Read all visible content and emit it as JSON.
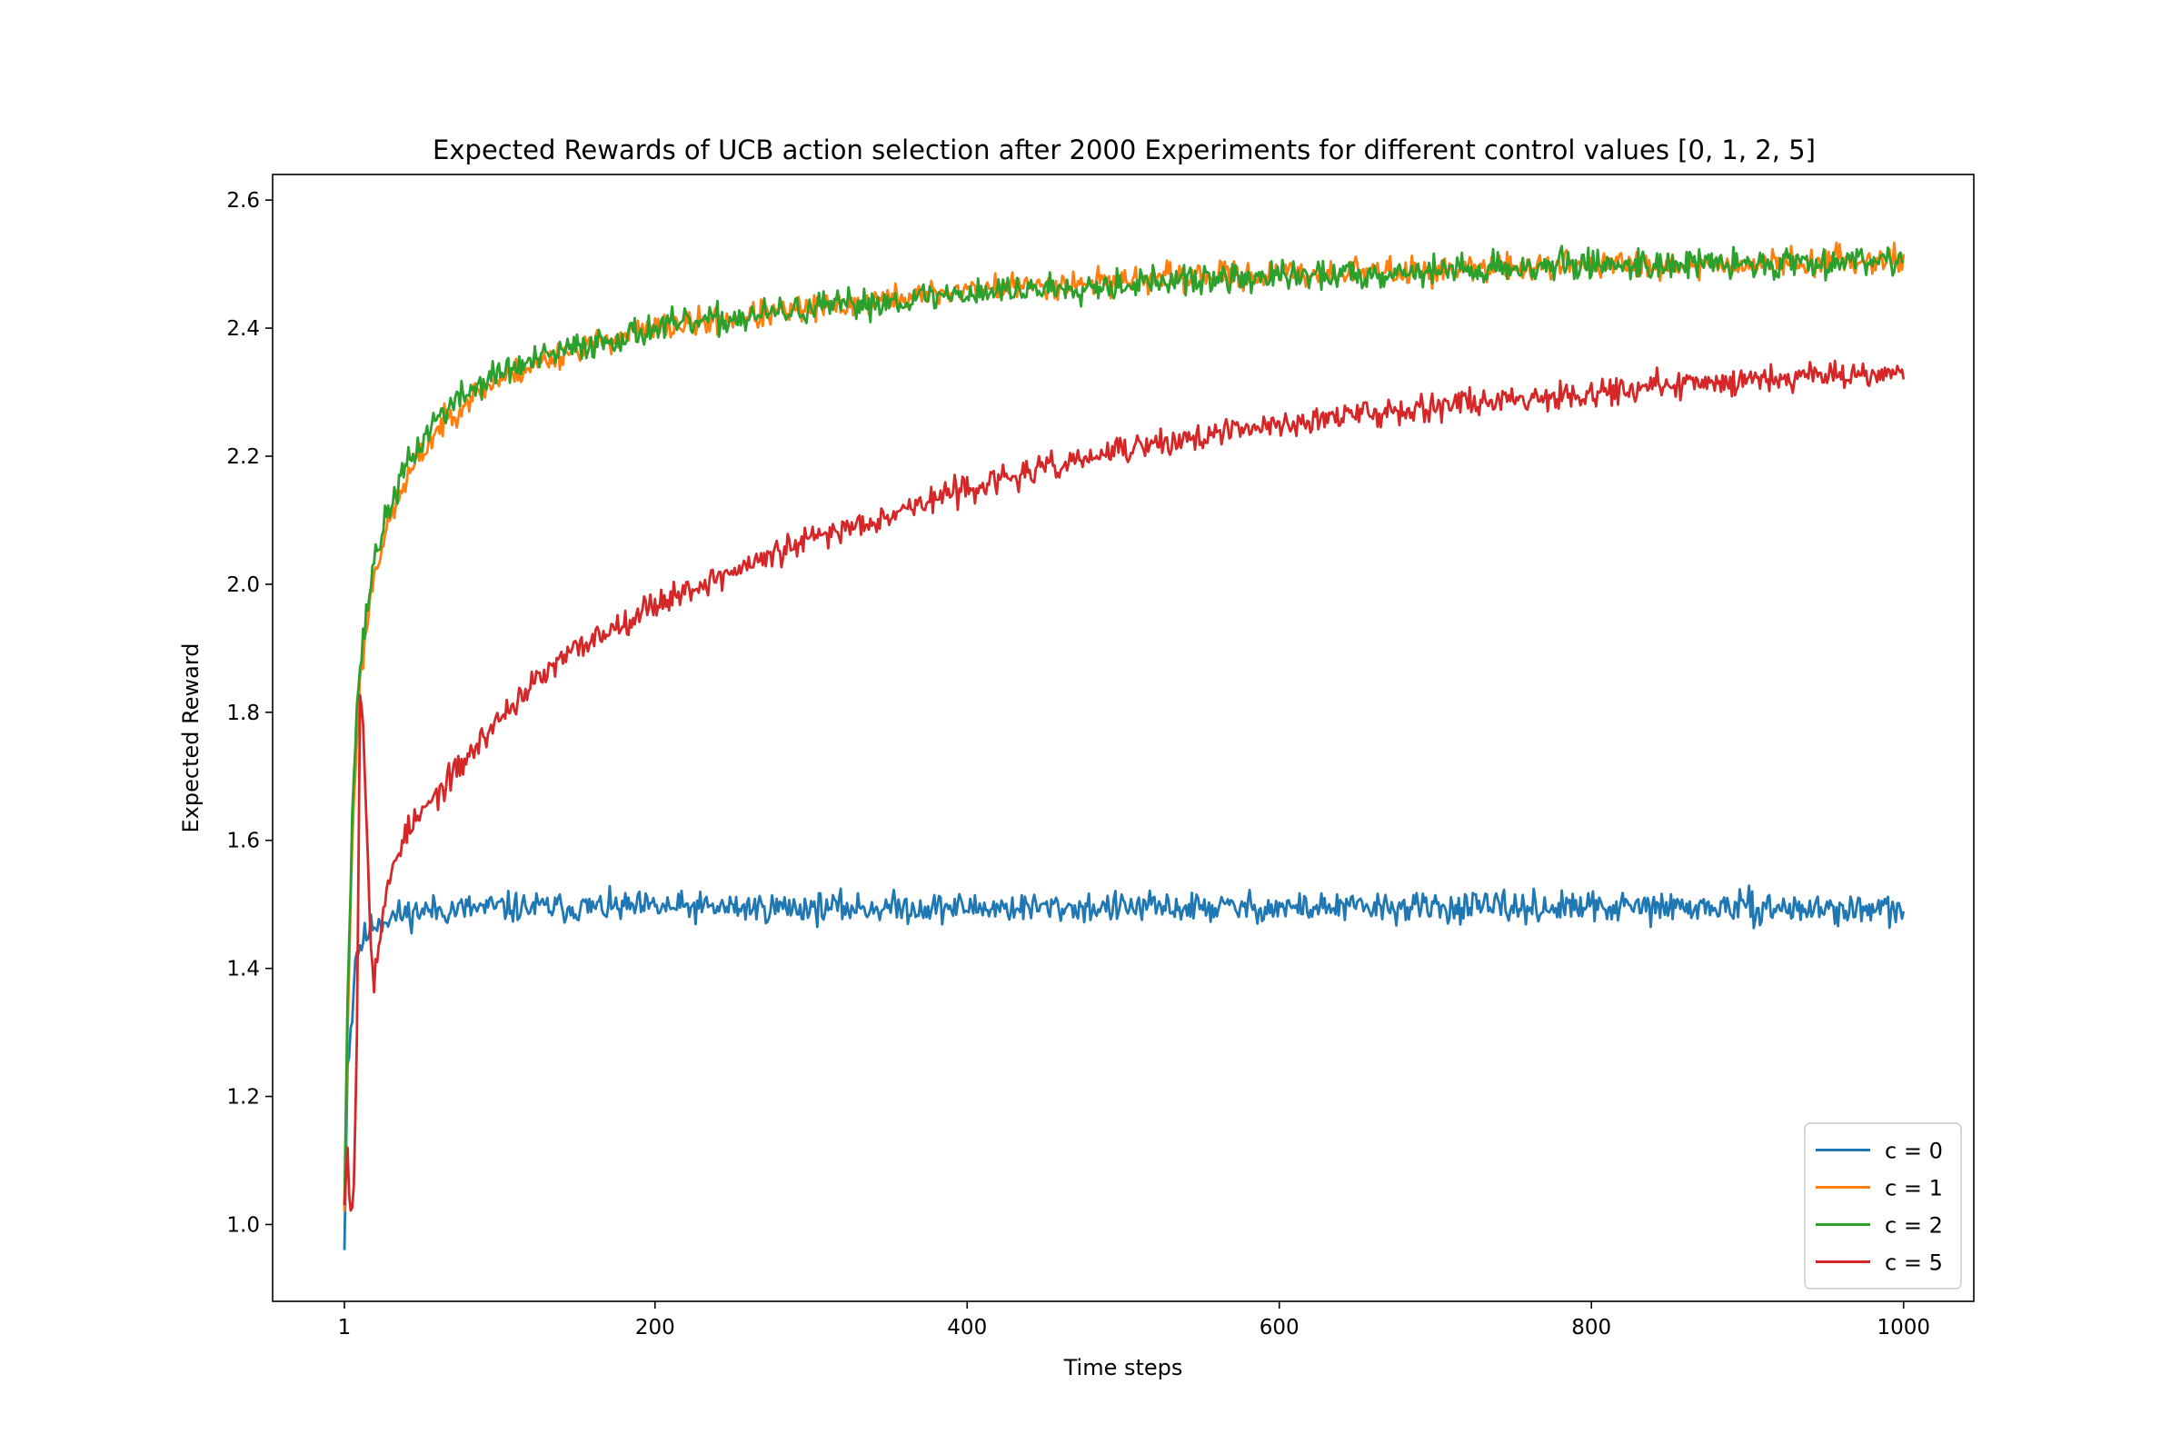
{
  "chart_data": {
    "type": "line",
    "title": "Expected Rewards of UCB action selection after 2000 Experiments for different control values [0, 1, 2, 5]",
    "xlabel": "Time steps",
    "ylabel": "Expected Reward",
    "xlim": [
      -45,
      1045
    ],
    "ylim": [
      0.88,
      2.64
    ],
    "x_ticks": [
      1,
      200,
      400,
      600,
      800,
      1000
    ],
    "y_ticks": [
      1.0,
      1.2,
      1.4,
      1.6,
      1.8,
      2.0,
      2.2,
      2.4,
      2.6
    ],
    "legend_position": "lower-right",
    "grid": false,
    "series": [
      {
        "name": "c = 0",
        "color": "#1f77b4",
        "noise": 0.022,
        "seed": 11,
        "points": [
          [
            1,
            0.96
          ],
          [
            3,
            1.25
          ],
          [
            6,
            1.33
          ],
          [
            8,
            1.42
          ],
          [
            12,
            1.44
          ],
          [
            20,
            1.47
          ],
          [
            30,
            1.48
          ],
          [
            50,
            1.49
          ],
          [
            100,
            1.495
          ],
          [
            300,
            1.495
          ],
          [
            600,
            1.495
          ],
          [
            900,
            1.495
          ],
          [
            1000,
            1.49
          ]
        ]
      },
      {
        "name": "c = 1",
        "color": "#ff7f0e",
        "noise": 0.02,
        "seed": 23,
        "points": [
          [
            1,
            1.02
          ],
          [
            3,
            1.3
          ],
          [
            6,
            1.6
          ],
          [
            10,
            1.82
          ],
          [
            15,
            1.93
          ],
          [
            20,
            2.02
          ],
          [
            30,
            2.1
          ],
          [
            40,
            2.16
          ],
          [
            50,
            2.2
          ],
          [
            60,
            2.24
          ],
          [
            80,
            2.29
          ],
          [
            100,
            2.32
          ],
          [
            150,
            2.37
          ],
          [
            200,
            2.4
          ],
          [
            300,
            2.43
          ],
          [
            400,
            2.46
          ],
          [
            500,
            2.475
          ],
          [
            600,
            2.485
          ],
          [
            700,
            2.49
          ],
          [
            800,
            2.5
          ],
          [
            900,
            2.5
          ],
          [
            1000,
            2.51
          ]
        ]
      },
      {
        "name": "c = 2",
        "color": "#2ca02c",
        "noise": 0.022,
        "seed": 37,
        "points": [
          [
            1,
            1.03
          ],
          [
            3,
            1.35
          ],
          [
            6,
            1.65
          ],
          [
            10,
            1.85
          ],
          [
            15,
            1.95
          ],
          [
            20,
            2.04
          ],
          [
            30,
            2.12
          ],
          [
            40,
            2.18
          ],
          [
            50,
            2.22
          ],
          [
            60,
            2.26
          ],
          [
            80,
            2.3
          ],
          [
            100,
            2.33
          ],
          [
            150,
            2.37
          ],
          [
            200,
            2.4
          ],
          [
            300,
            2.43
          ],
          [
            400,
            2.455
          ],
          [
            500,
            2.47
          ],
          [
            600,
            2.48
          ],
          [
            700,
            2.49
          ],
          [
            800,
            2.5
          ],
          [
            900,
            2.5
          ],
          [
            1000,
            2.51
          ]
        ]
      },
      {
        "name": "c = 5",
        "color": "#d62728",
        "noise": 0.02,
        "seed": 53,
        "points": [
          [
            1,
            1.03
          ],
          [
            3,
            1.12
          ],
          [
            5,
            1.02
          ],
          [
            7,
            1.06
          ],
          [
            9,
            1.3
          ],
          [
            11,
            1.83
          ],
          [
            13,
            1.78
          ],
          [
            16,
            1.58
          ],
          [
            18,
            1.45
          ],
          [
            20,
            1.38
          ],
          [
            23,
            1.44
          ],
          [
            27,
            1.5
          ],
          [
            33,
            1.57
          ],
          [
            40,
            1.61
          ],
          [
            50,
            1.64
          ],
          [
            60,
            1.67
          ],
          [
            80,
            1.73
          ],
          [
            100,
            1.79
          ],
          [
            120,
            1.84
          ],
          [
            150,
            1.9
          ],
          [
            200,
            1.97
          ],
          [
            250,
            2.02
          ],
          [
            300,
            2.07
          ],
          [
            350,
            2.11
          ],
          [
            400,
            2.15
          ],
          [
            450,
            2.18
          ],
          [
            500,
            2.21
          ],
          [
            550,
            2.23
          ],
          [
            600,
            2.25
          ],
          [
            650,
            2.265
          ],
          [
            700,
            2.28
          ],
          [
            750,
            2.29
          ],
          [
            800,
            2.3
          ],
          [
            850,
            2.31
          ],
          [
            900,
            2.32
          ],
          [
            950,
            2.33
          ],
          [
            1000,
            2.33
          ]
        ]
      }
    ]
  }
}
